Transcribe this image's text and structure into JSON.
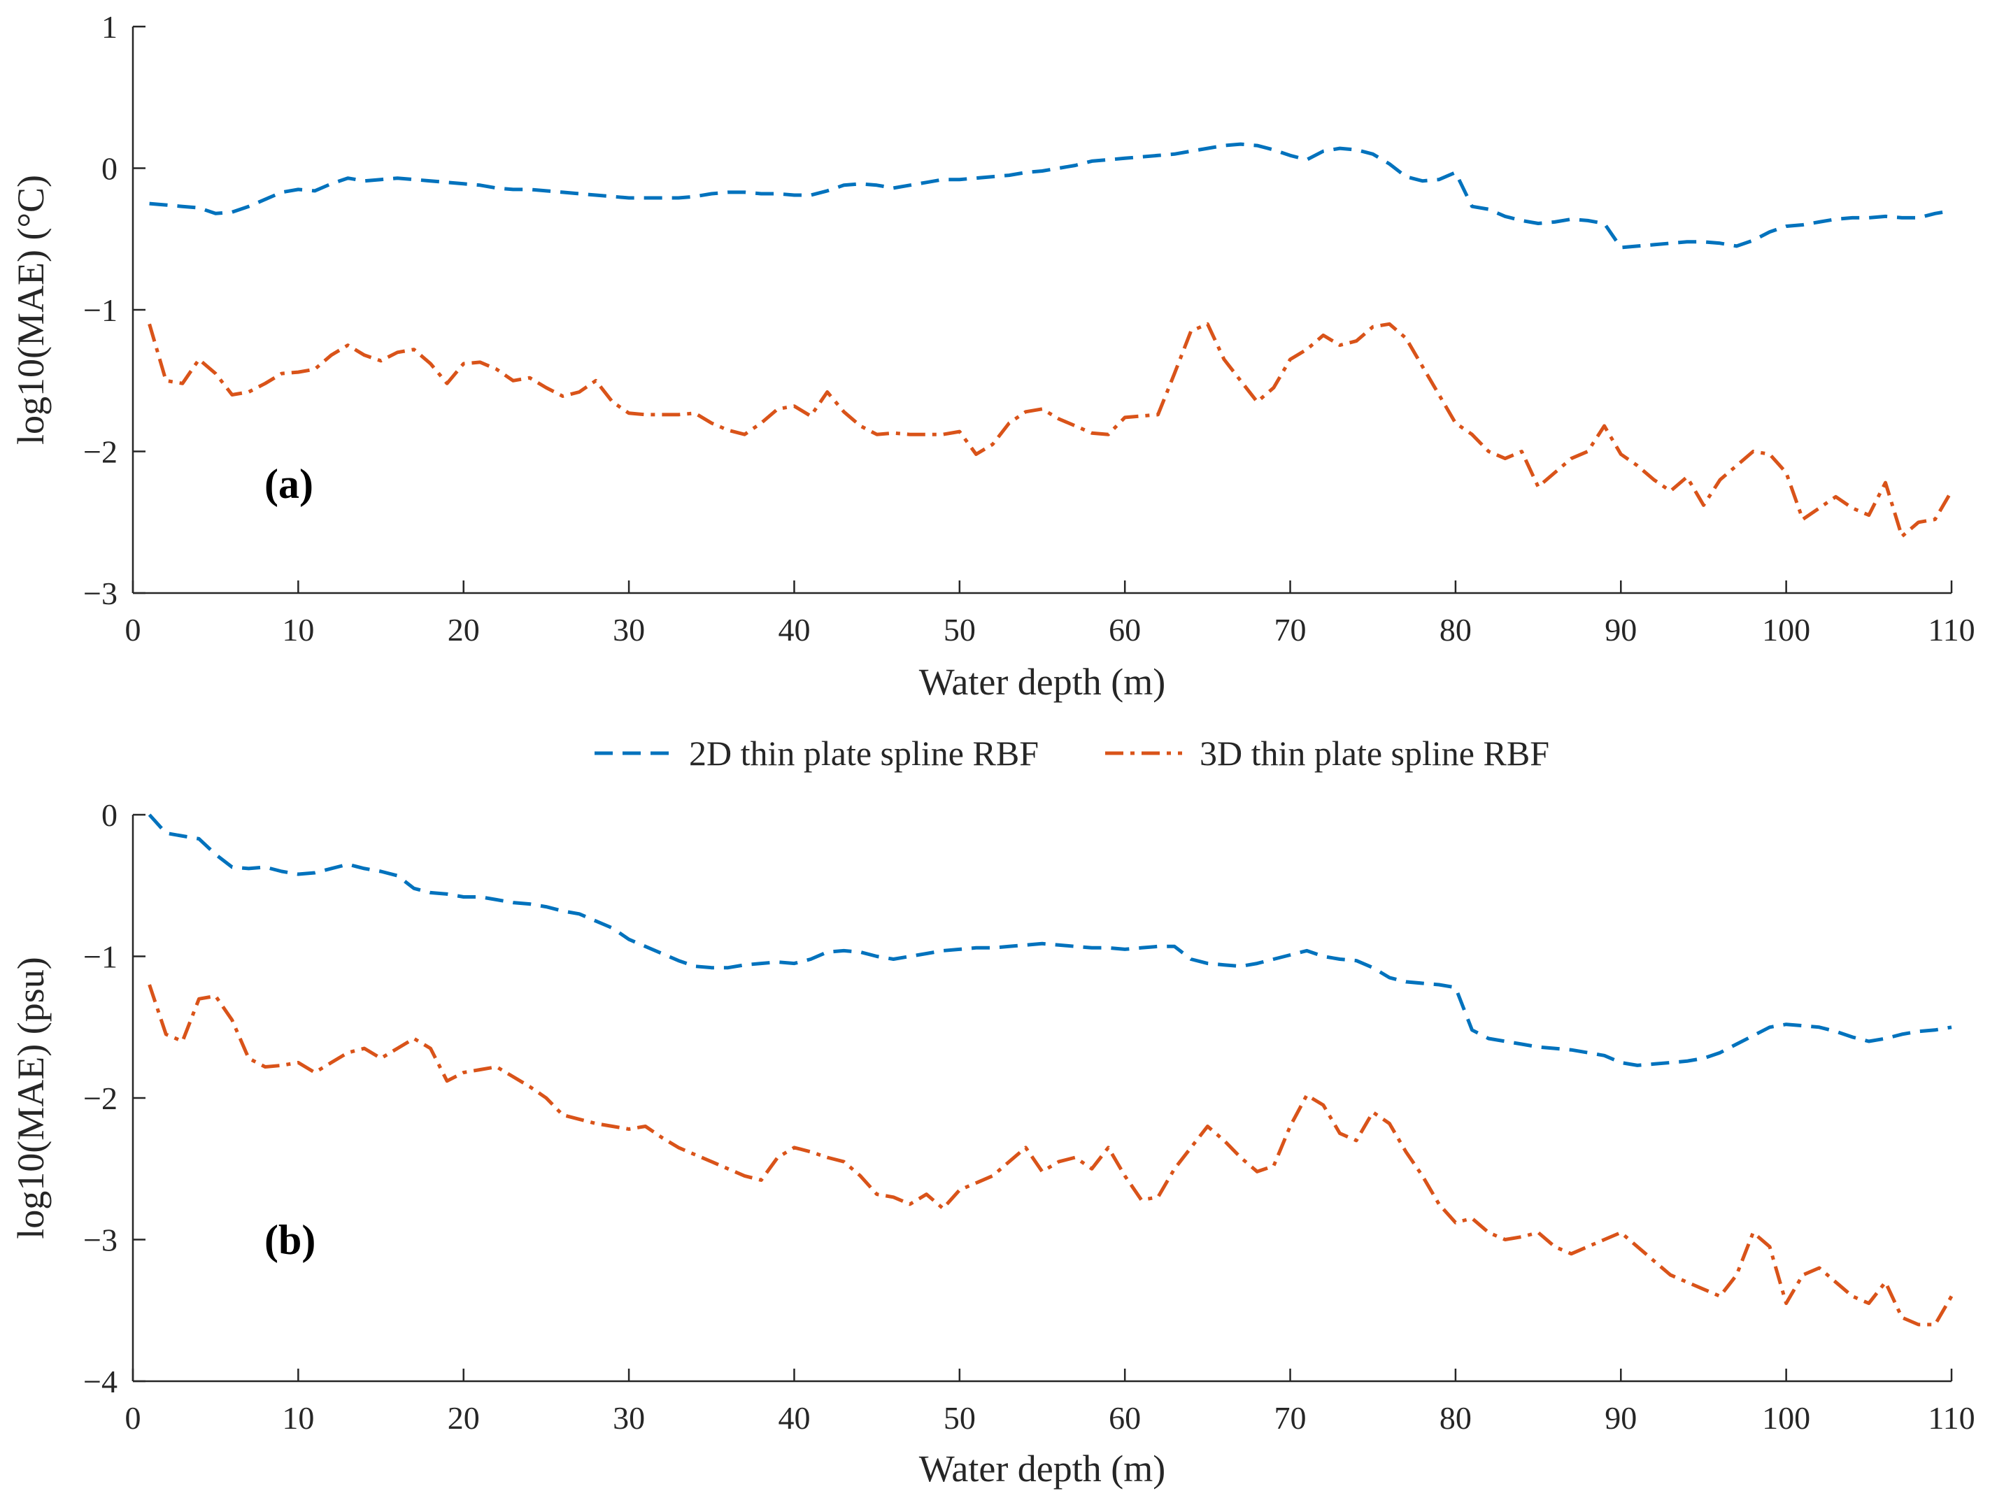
{
  "legend": {
    "placement": "between-panels",
    "entries": [
      {
        "label": "2D thin plate spline RBF",
        "color": "#0072BD",
        "dash": "dashed"
      },
      {
        "label": "3D thin plate spline RBF",
        "color": "#D95319",
        "dash": "dash-dot"
      }
    ]
  },
  "chart_data": [
    {
      "type": "line",
      "panel_label": "(a)",
      "xlabel": "Water depth (m)",
      "ylabel": "log10(MAE) (°C)",
      "xlim": [
        0,
        110
      ],
      "ylim": [
        -3,
        1
      ],
      "xticks": [
        0,
        10,
        20,
        30,
        40,
        50,
        60,
        70,
        80,
        90,
        100,
        110
      ],
      "xtick_labels": [
        "0",
        "10",
        "20",
        "30",
        "40",
        "50",
        "60",
        "70",
        "80",
        "90",
        "100",
        "110"
      ],
      "yticks": [
        -3,
        -2,
        -1,
        0,
        1
      ],
      "ytick_labels": [
        "−3",
        "−2",
        "−1",
        "0",
        "1"
      ],
      "grid": false,
      "series": [
        {
          "name": "2D thin plate spline RBF",
          "color": "#0072BD",
          "x": [
            1,
            2,
            3,
            4,
            5,
            6,
            7,
            8,
            9,
            10,
            11,
            12,
            13,
            14,
            15,
            16,
            17,
            18,
            19,
            20,
            21,
            22,
            23,
            24,
            25,
            26,
            27,
            28,
            29,
            30,
            31,
            32,
            33,
            34,
            35,
            36,
            37,
            38,
            39,
            40,
            41,
            42,
            43,
            44,
            45,
            46,
            47,
            48,
            49,
            50,
            51,
            52,
            53,
            54,
            55,
            56,
            57,
            58,
            59,
            60,
            61,
            62,
            63,
            64,
            65,
            66,
            67,
            68,
            69,
            70,
            71,
            72,
            73,
            74,
            75,
            76,
            77,
            78,
            79,
            80,
            81,
            82,
            83,
            84,
            85,
            86,
            87,
            88,
            89,
            90,
            91,
            92,
            93,
            94,
            95,
            96,
            97,
            98,
            99,
            100,
            101,
            102,
            103,
            104,
            105,
            106,
            107,
            108,
            109,
            110
          ],
          "y": [
            -0.25,
            -0.26,
            -0.27,
            -0.28,
            -0.32,
            -0.31,
            -0.27,
            -0.22,
            -0.17,
            -0.15,
            -0.16,
            -0.11,
            -0.07,
            -0.09,
            -0.08,
            -0.07,
            -0.08,
            -0.09,
            -0.1,
            -0.11,
            -0.12,
            -0.14,
            -0.15,
            -0.15,
            -0.16,
            -0.17,
            -0.18,
            -0.19,
            -0.2,
            -0.21,
            -0.21,
            -0.21,
            -0.21,
            -0.2,
            -0.18,
            -0.17,
            -0.17,
            -0.18,
            -0.18,
            -0.19,
            -0.19,
            -0.16,
            -0.12,
            -0.11,
            -0.12,
            -0.14,
            -0.12,
            -0.1,
            -0.08,
            -0.08,
            -0.07,
            -0.06,
            -0.05,
            -0.03,
            -0.02,
            0.0,
            0.02,
            0.05,
            0.06,
            0.07,
            0.08,
            0.09,
            0.1,
            0.12,
            0.14,
            0.16,
            0.17,
            0.16,
            0.13,
            0.09,
            0.06,
            0.12,
            0.14,
            0.13,
            0.1,
            0.03,
            -0.06,
            -0.09,
            -0.08,
            -0.03,
            -0.27,
            -0.29,
            -0.34,
            -0.37,
            -0.39,
            -0.38,
            -0.36,
            -0.37,
            -0.39,
            -0.56,
            -0.55,
            -0.54,
            -0.53,
            -0.52,
            -0.52,
            -0.53,
            -0.55,
            -0.51,
            -0.45,
            -0.41,
            -0.4,
            -0.38,
            -0.36,
            -0.35,
            -0.35,
            -0.34,
            -0.35,
            -0.35,
            -0.32,
            -0.3
          ]
        },
        {
          "name": "3D thin plate spline RBF",
          "color": "#D95319",
          "x": [
            1,
            2,
            3,
            4,
            5,
            6,
            7,
            8,
            9,
            10,
            11,
            12,
            13,
            14,
            15,
            16,
            17,
            18,
            19,
            20,
            21,
            22,
            23,
            24,
            25,
            26,
            27,
            28,
            29,
            30,
            31,
            32,
            33,
            34,
            35,
            36,
            37,
            38,
            39,
            40,
            41,
            42,
            43,
            44,
            45,
            46,
            47,
            48,
            49,
            50,
            51,
            52,
            53,
            54,
            55,
            56,
            57,
            58,
            59,
            60,
            61,
            62,
            63,
            64,
            65,
            66,
            67,
            68,
            69,
            70,
            71,
            72,
            73,
            74,
            75,
            76,
            77,
            78,
            79,
            80,
            81,
            82,
            83,
            84,
            85,
            86,
            87,
            88,
            89,
            90,
            91,
            92,
            93,
            94,
            95,
            96,
            97,
            98,
            99,
            100,
            101,
            102,
            103,
            104,
            105,
            106,
            107,
            108,
            109,
            110
          ],
          "y": [
            -1.1,
            -1.5,
            -1.52,
            -1.35,
            -1.45,
            -1.6,
            -1.58,
            -1.52,
            -1.45,
            -1.44,
            -1.42,
            -1.32,
            -1.25,
            -1.32,
            -1.36,
            -1.3,
            -1.28,
            -1.38,
            -1.52,
            -1.38,
            -1.37,
            -1.42,
            -1.5,
            -1.48,
            -1.55,
            -1.61,
            -1.58,
            -1.5,
            -1.65,
            -1.73,
            -1.74,
            -1.74,
            -1.74,
            -1.73,
            -1.8,
            -1.85,
            -1.88,
            -1.8,
            -1.7,
            -1.68,
            -1.75,
            -1.58,
            -1.72,
            -1.82,
            -1.88,
            -1.87,
            -1.88,
            -1.88,
            -1.88,
            -1.86,
            -2.02,
            -1.95,
            -1.8,
            -1.72,
            -1.7,
            -1.77,
            -1.82,
            -1.87,
            -1.88,
            -1.76,
            -1.75,
            -1.74,
            -1.45,
            -1.15,
            -1.1,
            -1.35,
            -1.5,
            -1.65,
            -1.55,
            -1.35,
            -1.28,
            -1.18,
            -1.25,
            -1.22,
            -1.12,
            -1.1,
            -1.2,
            -1.4,
            -1.6,
            -1.8,
            -1.88,
            -2.0,
            -2.05,
            -2.0,
            -2.25,
            -2.15,
            -2.05,
            -2.0,
            -1.82,
            -2.02,
            -2.1,
            -2.2,
            -2.28,
            -2.18,
            -2.38,
            -2.2,
            -2.1,
            -2.0,
            -2.02,
            -2.15,
            -2.48,
            -2.4,
            -2.32,
            -2.4,
            -2.45,
            -2.22,
            -2.6,
            -2.5,
            -2.48,
            -2.28
          ]
        }
      ]
    },
    {
      "type": "line",
      "panel_label": "(b)",
      "xlabel": "Water depth (m)",
      "ylabel": "log10(MAE) (psu)",
      "xlim": [
        0,
        110
      ],
      "ylim": [
        -4,
        0
      ],
      "xticks": [
        0,
        10,
        20,
        30,
        40,
        50,
        60,
        70,
        80,
        90,
        100,
        110
      ],
      "xtick_labels": [
        "0",
        "10",
        "20",
        "30",
        "40",
        "50",
        "60",
        "70",
        "80",
        "90",
        "100",
        "110"
      ],
      "yticks": [
        -4,
        -3,
        -2,
        -1,
        0
      ],
      "ytick_labels": [
        "−4",
        "−3",
        "−2",
        "−1",
        "0"
      ],
      "grid": false,
      "series": [
        {
          "name": "2D thin plate spline RBF",
          "color": "#0072BD",
          "x": [
            1,
            2,
            3,
            4,
            5,
            6,
            7,
            8,
            9,
            10,
            11,
            12,
            13,
            14,
            15,
            16,
            17,
            18,
            19,
            20,
            21,
            22,
            23,
            24,
            25,
            26,
            27,
            28,
            29,
            30,
            31,
            32,
            33,
            34,
            35,
            36,
            37,
            38,
            39,
            40,
            41,
            42,
            43,
            44,
            45,
            46,
            47,
            48,
            49,
            50,
            51,
            52,
            53,
            54,
            55,
            56,
            57,
            58,
            59,
            60,
            61,
            62,
            63,
            64,
            65,
            66,
            67,
            68,
            69,
            70,
            71,
            72,
            73,
            74,
            75,
            76,
            77,
            78,
            79,
            80,
            81,
            82,
            83,
            84,
            85,
            86,
            87,
            88,
            89,
            90,
            91,
            92,
            93,
            94,
            95,
            96,
            97,
            98,
            99,
            100,
            101,
            102,
            103,
            104,
            105,
            106,
            107,
            108,
            109,
            110
          ],
          "y": [
            0.0,
            -0.13,
            -0.15,
            -0.17,
            -0.28,
            -0.37,
            -0.38,
            -0.37,
            -0.4,
            -0.42,
            -0.41,
            -0.38,
            -0.35,
            -0.38,
            -0.4,
            -0.43,
            -0.52,
            -0.55,
            -0.56,
            -0.58,
            -0.58,
            -0.6,
            -0.62,
            -0.63,
            -0.65,
            -0.68,
            -0.7,
            -0.75,
            -0.8,
            -0.88,
            -0.93,
            -0.98,
            -1.03,
            -1.07,
            -1.08,
            -1.08,
            -1.06,
            -1.05,
            -1.04,
            -1.05,
            -1.02,
            -0.97,
            -0.96,
            -0.97,
            -1.0,
            -1.02,
            -1.0,
            -0.98,
            -0.96,
            -0.95,
            -0.94,
            -0.94,
            -0.93,
            -0.92,
            -0.91,
            -0.92,
            -0.93,
            -0.94,
            -0.94,
            -0.95,
            -0.94,
            -0.93,
            -0.93,
            -1.02,
            -1.05,
            -1.06,
            -1.07,
            -1.05,
            -1.02,
            -0.99,
            -0.96,
            -1.0,
            -1.02,
            -1.03,
            -1.08,
            -1.15,
            -1.18,
            -1.19,
            -1.2,
            -1.22,
            -1.52,
            -1.58,
            -1.6,
            -1.62,
            -1.64,
            -1.65,
            -1.66,
            -1.68,
            -1.7,
            -1.75,
            -1.77,
            -1.76,
            -1.75,
            -1.74,
            -1.72,
            -1.68,
            -1.62,
            -1.56,
            -1.5,
            -1.48,
            -1.49,
            -1.5,
            -1.53,
            -1.57,
            -1.6,
            -1.58,
            -1.55,
            -1.53,
            -1.52,
            -1.5
          ]
        },
        {
          "name": "3D thin plate spline RBF",
          "color": "#D95319",
          "x": [
            1,
            2,
            3,
            4,
            5,
            6,
            7,
            8,
            9,
            10,
            11,
            12,
            13,
            14,
            15,
            16,
            17,
            18,
            19,
            20,
            21,
            22,
            23,
            24,
            25,
            26,
            27,
            28,
            29,
            30,
            31,
            32,
            33,
            34,
            35,
            36,
            37,
            38,
            39,
            40,
            41,
            42,
            43,
            44,
            45,
            46,
            47,
            48,
            49,
            50,
            51,
            52,
            53,
            54,
            55,
            56,
            57,
            58,
            59,
            60,
            61,
            62,
            63,
            64,
            65,
            66,
            67,
            68,
            69,
            70,
            71,
            72,
            73,
            74,
            75,
            76,
            77,
            78,
            79,
            80,
            81,
            82,
            83,
            84,
            85,
            86,
            87,
            88,
            89,
            90,
            91,
            92,
            93,
            94,
            95,
            96,
            97,
            98,
            99,
            100,
            101,
            102,
            103,
            104,
            105,
            106,
            107,
            108,
            109,
            110
          ],
          "y": [
            -1.2,
            -1.55,
            -1.6,
            -1.3,
            -1.28,
            -1.45,
            -1.72,
            -1.78,
            -1.77,
            -1.75,
            -1.82,
            -1.75,
            -1.68,
            -1.65,
            -1.72,
            -1.65,
            -1.58,
            -1.65,
            -1.88,
            -1.82,
            -1.8,
            -1.78,
            -1.85,
            -1.92,
            -2.0,
            -2.12,
            -2.15,
            -2.18,
            -2.2,
            -2.22,
            -2.2,
            -2.28,
            -2.35,
            -2.4,
            -2.45,
            -2.5,
            -2.55,
            -2.58,
            -2.42,
            -2.35,
            -2.38,
            -2.42,
            -2.45,
            -2.55,
            -2.68,
            -2.7,
            -2.75,
            -2.68,
            -2.78,
            -2.65,
            -2.6,
            -2.55,
            -2.45,
            -2.35,
            -2.52,
            -2.45,
            -2.42,
            -2.5,
            -2.35,
            -2.55,
            -2.72,
            -2.7,
            -2.5,
            -2.35,
            -2.2,
            -2.3,
            -2.42,
            -2.52,
            -2.48,
            -2.2,
            -1.98,
            -2.05,
            -2.25,
            -2.3,
            -2.1,
            -2.18,
            -2.38,
            -2.55,
            -2.75,
            -2.88,
            -2.85,
            -2.95,
            -3.0,
            -2.98,
            -2.95,
            -3.05,
            -3.1,
            -3.05,
            -3.0,
            -2.95,
            -3.05,
            -3.15,
            -3.25,
            -3.3,
            -3.35,
            -3.4,
            -3.25,
            -2.95,
            -3.05,
            -3.45,
            -3.25,
            -3.2,
            -3.3,
            -3.4,
            -3.45,
            -3.3,
            -3.55,
            -3.6,
            -3.6,
            -3.4
          ]
        }
      ]
    }
  ]
}
